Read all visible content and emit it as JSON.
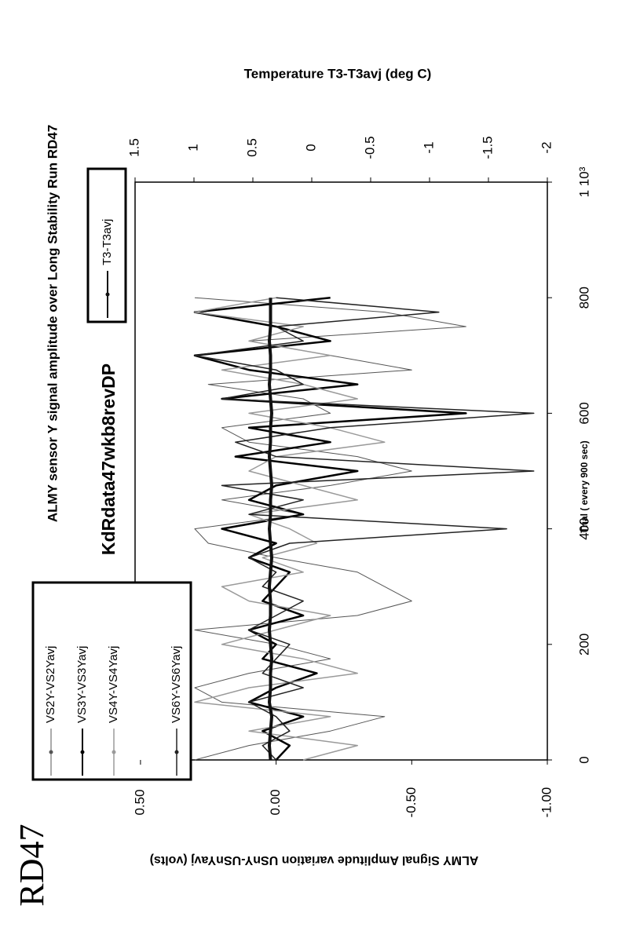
{
  "chart_data": {
    "type": "line",
    "title": "ALMY sensor Y signal amplitude over Long Stability Run RD47",
    "subtitle": "KdRdata47wkb8revDP",
    "annotation": "RD47",
    "x_label": "Trial ( every 900 sec)",
    "y_label": "ALMY Signal Amplitude variation USnY-USnYavj (volts)",
    "y2_label": "Temperature T3-T3avj (deg C)",
    "xlim": [
      0,
      1000
    ],
    "xticks": [
      0,
      200,
      400,
      600,
      800,
      {
        "value": 1000,
        "label": "1 10³"
      }
    ],
    "ylim": [
      -1.0,
      0.52
    ],
    "yticks": [
      {
        "value": -1.0,
        "label": "-1.00"
      },
      {
        "value": -0.5,
        "label": "-0.50"
      },
      {
        "value": 0.0,
        "label": "0.00"
      },
      {
        "value": 0.5,
        "label": "0.50"
      }
    ],
    "y2lim": [
      -2,
      1.5
    ],
    "y2ticks": [
      1.5,
      1,
      0.5,
      0,
      -0.5,
      -1,
      -1.5,
      -2
    ],
    "x": [
      0,
      25,
      50,
      75,
      100,
      125,
      150,
      175,
      200,
      225,
      250,
      275,
      300,
      325,
      350,
      375,
      400,
      425,
      450,
      475,
      500,
      525,
      550,
      575,
      600,
      625,
      650,
      675,
      700,
      725,
      750,
      775,
      800
    ],
    "series": [
      {
        "name": "VS2Y-VS2Yavj",
        "color": "#555555",
        "width": 1,
        "values": [
          0.3,
          0.1,
          -0.2,
          -0.4,
          0.2,
          0.3,
          0.1,
          -0.2,
          0.0,
          0.3,
          -0.3,
          -0.5,
          -0.4,
          -0.3,
          0.0,
          0.25,
          0.3,
          -0.1,
          0.2,
          -0.2,
          -0.5,
          -0.3,
          0.1,
          0.2,
          -0.2,
          -0.1,
          0.25,
          -0.5,
          -0.2,
          0.1,
          -0.7,
          -0.4,
          0.3
        ]
      },
      {
        "name": "VS3Y-VS3Yavj",
        "color": "#000000",
        "width": 2.5,
        "values": [
          0.0,
          -0.05,
          0.05,
          -0.1,
          0.1,
          0.0,
          -0.15,
          0.05,
          0.0,
          0.1,
          -0.1,
          0.05,
          0.0,
          -0.05,
          0.1,
          0.0,
          0.2,
          -0.1,
          0.1,
          0.0,
          -0.3,
          0.15,
          -0.2,
          0.1,
          -0.7,
          0.2,
          -0.3,
          0.1,
          0.3,
          -0.2,
          0.0,
          0.3,
          -0.2
        ]
      },
      {
        "name": "VS4Y-VS4Yavj",
        "color": "#9a9a9a",
        "width": 1.5,
        "values": [
          -0.1,
          -0.3,
          0.1,
          -0.2,
          0.3,
          0.1,
          -0.3,
          -0.1,
          0.2,
          0.0,
          -0.2,
          0.1,
          0.2,
          -0.1,
          0.05,
          -0.15,
          -0.05,
          0.1,
          -0.3,
          -0.1,
          0.1,
          0.0,
          -0.4,
          -0.2,
          0.1,
          -0.3,
          -0.1,
          0.2,
          -0.2,
          0.1,
          -0.1,
          0.3,
          0.0
        ]
      },
      {
        "name": "VS6Y-VS6Yavj",
        "color": "#222222",
        "width": 1.5,
        "values": [
          0.0,
          0.05,
          -0.05,
          0.0,
          0.1,
          -0.1,
          0.05,
          0.0,
          -0.05,
          0.1,
          0.0,
          -0.1,
          0.05,
          0.0,
          0.1,
          -0.05,
          -0.85,
          0.1,
          -0.1,
          0.2,
          -0.95,
          0.0,
          0.15,
          -0.2,
          -0.95,
          0.2,
          -0.1,
          0.0,
          0.3,
          -0.1,
          0.0,
          -0.6,
          0.0
        ]
      },
      {
        "name": "T3-T3avj",
        "color": "#111111",
        "width": 4,
        "axis": "y2",
        "values": [
          0.35,
          0.36,
          0.35,
          0.34,
          0.36,
          0.35,
          0.35,
          0.34,
          0.35,
          0.36,
          0.35,
          0.35,
          0.36,
          0.35,
          0.34,
          0.35,
          0.36,
          0.35,
          0.35,
          0.34,
          0.35,
          0.36,
          0.35,
          0.35,
          0.34,
          0.35,
          0.36,
          0.35,
          0.35,
          0.36,
          0.35,
          0.35,
          0.35
        ]
      }
    ]
  }
}
